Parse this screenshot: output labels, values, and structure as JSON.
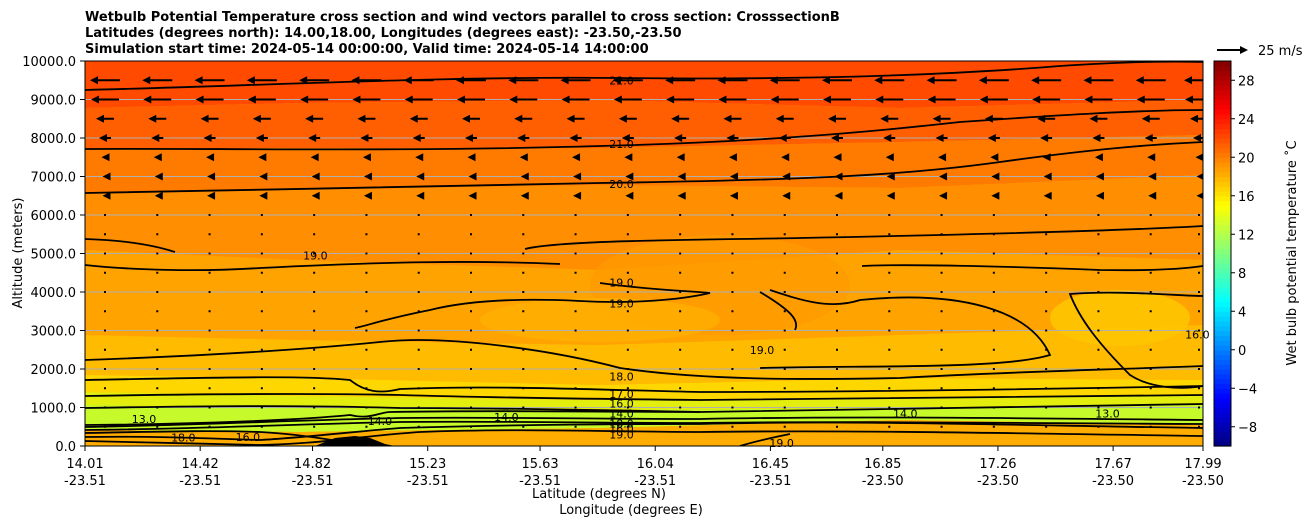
{
  "chart_data": {
    "type": "contourf",
    "title_lines": [
      "Wetbulb Potential Temperature cross section and wind vectors parallel to cross section: CrosssectionB",
      "Latitudes (degrees north): 14.00,18.00, Longitudes (degrees east): -23.50,-23.50",
      "Simulation start time: 2024-05-14 00:00:00, Valid time: 2024-05-14 14:00:00"
    ],
    "xlabel_lat": "Latitude (degrees N)",
    "xlabel_lon": "Longitude (degrees E)",
    "ylabel": "Altitude (meters)",
    "colorbar_label": "Wet bulb potential temperature ˚C",
    "quiver_key": "25 m/s",
    "x_ticks": [
      {
        "lat": "14.01",
        "lon": "-23.51"
      },
      {
        "lat": "14.42",
        "lon": "-23.51"
      },
      {
        "lat": "14.82",
        "lon": "-23.51"
      },
      {
        "lat": "15.23",
        "lon": "-23.51"
      },
      {
        "lat": "15.63",
        "lon": "-23.51"
      },
      {
        "lat": "16.04",
        "lon": "-23.51"
      },
      {
        "lat": "16.45",
        "lon": "-23.51"
      },
      {
        "lat": "16.85",
        "lon": "-23.50"
      },
      {
        "lat": "17.26",
        "lon": "-23.50"
      },
      {
        "lat": "17.67",
        "lon": "-23.50"
      },
      {
        "lat": "17.99",
        "lon": "-23.50"
      }
    ],
    "xlim": [
      14.01,
      17.99
    ],
    "ylim": [
      0,
      10000
    ],
    "y_ticks": [
      0,
      1000,
      2000,
      3000,
      4000,
      5000,
      6000,
      7000,
      8000,
      9000,
      10000
    ],
    "y_tick_labels": [
      "0.0",
      "1000.0",
      "2000.0",
      "3000.0",
      "4000.0",
      "5000.0",
      "6000.0",
      "7000.0",
      "8000.0",
      "9000.0",
      "10000.0"
    ],
    "colorbar_range": [
      -10,
      30
    ],
    "colorbar_ticks": [
      -8,
      -4,
      0,
      4,
      8,
      12,
      16,
      20,
      24,
      28
    ],
    "colorbar_tick_labels": [
      "−8",
      "−4",
      "0",
      "4",
      "8",
      "12",
      "16",
      "20",
      "24",
      "28"
    ],
    "colormap": "jet",
    "contour_labels": [
      {
        "text": "22.0",
        "lat": 15.92,
        "alt": 9500
      },
      {
        "text": "21.0",
        "lat": 15.92,
        "alt": 7850
      },
      {
        "text": "20.0",
        "lat": 15.92,
        "alt": 6800
      },
      {
        "text": "19.0",
        "lat": 14.83,
        "alt": 4950
      },
      {
        "text": "19.0",
        "lat": 15.92,
        "alt": 4250
      },
      {
        "text": "19.0",
        "lat": 15.92,
        "alt": 3700
      },
      {
        "text": "19.0",
        "lat": 16.42,
        "alt": 2500
      },
      {
        "text": "16.0",
        "lat": 17.97,
        "alt": 2900
      },
      {
        "text": "18.0",
        "lat": 15.92,
        "alt": 1800
      },
      {
        "text": "17.0",
        "lat": 15.92,
        "alt": 1350
      },
      {
        "text": "16.0",
        "lat": 15.92,
        "alt": 1100
      },
      {
        "text": "14.0",
        "lat": 15.92,
        "alt": 850
      },
      {
        "text": "13.0",
        "lat": 14.22,
        "alt": 700
      },
      {
        "text": "14.0",
        "lat": 15.06,
        "alt": 650
      },
      {
        "text": "14.0",
        "lat": 15.51,
        "alt": 750
      },
      {
        "text": "14.0",
        "lat": 16.93,
        "alt": 850
      },
      {
        "text": "13.0",
        "lat": 17.65,
        "alt": 850
      },
      {
        "text": "16.0",
        "lat": 15.92,
        "alt": 450
      },
      {
        "text": "18.0",
        "lat": 15.92,
        "alt": 580
      },
      {
        "text": "19.0",
        "lat": 15.92,
        "alt": 300
      },
      {
        "text": "18.0",
        "lat": 14.36,
        "alt": 220
      },
      {
        "text": "16.0",
        "lat": 14.59,
        "alt": 230
      },
      {
        "text": "19.0",
        "lat": 14.97,
        "alt": 130
      },
      {
        "text": "19.0",
        "lat": 16.49,
        "alt": 80
      }
    ]
  }
}
